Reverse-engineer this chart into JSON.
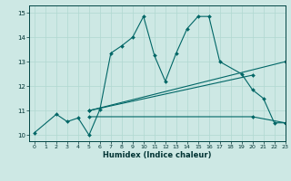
{
  "xlabel": "Humidex (Indice chaleur)",
  "background_color": "#cde8e4",
  "line_color": "#006666",
  "grid_color": "#b0d8d0",
  "xlim": [
    -0.5,
    23
  ],
  "ylim": [
    9.75,
    15.3
  ],
  "xticks": [
    0,
    1,
    2,
    3,
    4,
    5,
    6,
    7,
    8,
    9,
    10,
    11,
    12,
    13,
    14,
    15,
    16,
    17,
    18,
    19,
    20,
    21,
    22,
    23
  ],
  "yticks": [
    10,
    11,
    12,
    13,
    14,
    15
  ],
  "series": [
    {
      "x": [
        0,
        2,
        3,
        4,
        5,
        6,
        7,
        8,
        9,
        10,
        11,
        12,
        13,
        14,
        15,
        16,
        17,
        19,
        20,
        21,
        22,
        23
      ],
      "y": [
        10.1,
        10.85,
        10.55,
        10.7,
        10.0,
        11.05,
        13.35,
        13.65,
        14.0,
        14.85,
        13.25,
        12.2,
        13.35,
        14.35,
        14.85,
        14.85,
        13.0,
        12.5,
        11.85,
        11.5,
        10.5,
        10.5
      ]
    },
    {
      "x": [
        5,
        23
      ],
      "y": [
        11.0,
        13.0
      ]
    },
    {
      "x": [
        5,
        20
      ],
      "y": [
        11.0,
        12.45
      ]
    },
    {
      "x": [
        5,
        20,
        23
      ],
      "y": [
        10.75,
        10.75,
        10.5
      ]
    }
  ]
}
